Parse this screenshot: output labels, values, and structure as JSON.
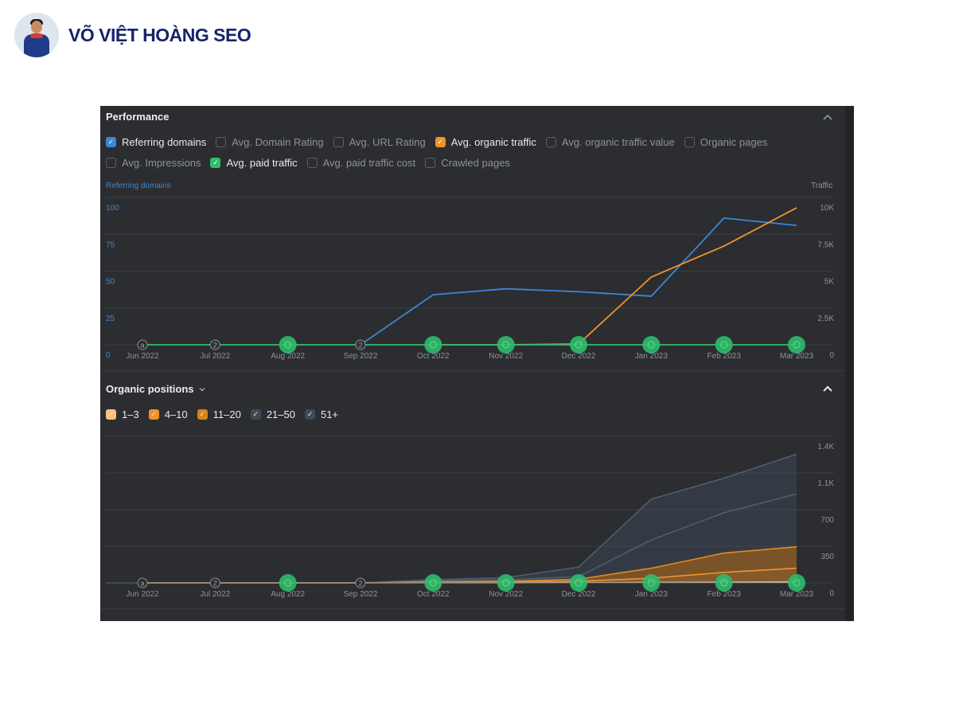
{
  "brand": {
    "name": "VÕ VIỆT HOÀNG SEO",
    "avatar": "avatar-photo"
  },
  "performance": {
    "title": "Performance",
    "collapse_icon": "chevron-up-icon",
    "metrics": [
      {
        "label": "Referring domains",
        "checked": true,
        "color": "#3b86d6"
      },
      {
        "label": "Avg. Domain Rating",
        "checked": false
      },
      {
        "label": "Avg. URL Rating",
        "checked": false
      },
      {
        "label": "Avg. organic traffic",
        "checked": true,
        "color": "#f0922b"
      },
      {
        "label": "Avg. organic traffic value",
        "checked": false
      },
      {
        "label": "Organic pages",
        "checked": false
      },
      {
        "label": "Avg. Impressions",
        "checked": false
      },
      {
        "label": "Avg. paid traffic",
        "checked": true,
        "color": "#2ebd6b"
      },
      {
        "label": "Avg. paid traffic cost",
        "checked": false
      },
      {
        "label": "Crawled pages",
        "checked": false
      }
    ],
    "left_axis_label": "Referring domains",
    "right_axis_label": "Traffic"
  },
  "organic_positions": {
    "title": "Organic positions",
    "dropdown_icon": "chevron-down-icon",
    "collapse_icon": "chevron-up-icon",
    "filters": [
      {
        "label": "1–3",
        "checked": true,
        "color": "#f6c27a"
      },
      {
        "label": "4–10",
        "checked": true,
        "color": "#f0922b"
      },
      {
        "label": "11–20",
        "checked": true,
        "color": "#d9821f"
      },
      {
        "label": "21–50",
        "checked": true,
        "color": "#3d4a5a"
      },
      {
        "label": "51+",
        "checked": true,
        "color": "#3d4a5a"
      }
    ]
  },
  "chart_data": [
    {
      "type": "line",
      "title": "Performance",
      "x": [
        "Jun 2022",
        "Jul 2022",
        "Aug 2022",
        "Sep 2022",
        "Oct 2022",
        "Nov 2022",
        "Dec 2022",
        "Jan 2023",
        "Feb 2023",
        "Mar 2023"
      ],
      "ylabel_left": "Referring domains",
      "ylabel_right": "Traffic",
      "yticks_left": [
        "0",
        "25",
        "50",
        "75",
        "100"
      ],
      "yticks_right": [
        "0",
        "2.5K",
        "5K",
        "7.5K",
        "10K"
      ],
      "ylim_left": [
        0,
        100
      ],
      "ylim_right": [
        0,
        10000
      ],
      "grid": true,
      "series": [
        {
          "name": "Referring domains",
          "axis": "left",
          "color": "#3b86d6",
          "values": [
            null,
            null,
            null,
            0,
            34,
            38,
            36,
            33,
            86,
            81
          ]
        },
        {
          "name": "Avg. organic traffic",
          "axis": "right",
          "color": "#f0922b",
          "values": [
            null,
            null,
            null,
            null,
            0,
            0,
            50,
            4600,
            6700,
            9300
          ]
        },
        {
          "name": "Avg. paid traffic",
          "axis": "right",
          "color": "#2ebd6b",
          "values": [
            0,
            0,
            0,
            0,
            0,
            0,
            0,
            0,
            0,
            0
          ]
        }
      ],
      "annotations": [
        {
          "x": "Jun 2022",
          "label": "a",
          "kind": "outline"
        },
        {
          "x": "Jul 2022",
          "label": "2",
          "kind": "outline"
        },
        {
          "x": "Aug 2022",
          "label": "",
          "kind": "green"
        },
        {
          "x": "Sep 2022",
          "label": "2",
          "kind": "outline"
        },
        {
          "x": "Oct 2022",
          "label": "",
          "kind": "green"
        },
        {
          "x": "Nov 2022",
          "label": "",
          "kind": "green"
        },
        {
          "x": "Dec 2022",
          "label": "",
          "kind": "green"
        },
        {
          "x": "Jan 2023",
          "label": "",
          "kind": "green"
        },
        {
          "x": "Feb 2023",
          "label": "",
          "kind": "green"
        },
        {
          "x": "Mar 2023",
          "label": "",
          "kind": "green"
        }
      ]
    },
    {
      "type": "area",
      "title": "Organic positions",
      "x": [
        "Jun 2022",
        "Jul 2022",
        "Aug 2022",
        "Sep 2022",
        "Oct 2022",
        "Nov 2022",
        "Dec 2022",
        "Jan 2023",
        "Feb 2023",
        "Mar 2023"
      ],
      "yticks": [
        "0",
        "350",
        "700",
        "1.1K",
        "1.4K"
      ],
      "ylim": [
        0,
        1400
      ],
      "grid": true,
      "stacked": true,
      "series_cumulative": [
        {
          "name": "1–3",
          "color": "#f6c27a",
          "values": [
            0,
            0,
            0,
            0,
            0,
            0,
            2,
            4,
            6,
            8
          ]
        },
        {
          "name": "4–10",
          "color": "#f0922b",
          "values": [
            0,
            0,
            0,
            0,
            5,
            8,
            15,
            45,
            100,
            140
          ]
        },
        {
          "name": "11–20",
          "color": "#d9821f",
          "values": [
            0,
            0,
            0,
            0,
            10,
            15,
            35,
            140,
            285,
            345
          ]
        },
        {
          "name": "21–50",
          "color": "#56657a",
          "values": [
            0,
            0,
            0,
            0,
            20,
            30,
            60,
            410,
            670,
            850
          ]
        },
        {
          "name": "51+",
          "color": "#56657a",
          "values": [
            0,
            0,
            0,
            0,
            30,
            50,
            150,
            800,
            1000,
            1230
          ]
        }
      ],
      "annotations": [
        {
          "x": "Jun 2022",
          "label": "a",
          "kind": "outline"
        },
        {
          "x": "Jul 2022",
          "label": "2",
          "kind": "outline"
        },
        {
          "x": "Aug 2022",
          "label": "",
          "kind": "green"
        },
        {
          "x": "Sep 2022",
          "label": "2",
          "kind": "outline"
        },
        {
          "x": "Oct 2022",
          "label": "",
          "kind": "green"
        },
        {
          "x": "Nov 2022",
          "label": "",
          "kind": "green"
        },
        {
          "x": "Dec 2022",
          "label": "",
          "kind": "green"
        },
        {
          "x": "Jan 2023",
          "label": "",
          "kind": "green"
        },
        {
          "x": "Feb 2023",
          "label": "",
          "kind": "green"
        },
        {
          "x": "Mar 2023",
          "label": "",
          "kind": "green"
        }
      ]
    }
  ]
}
